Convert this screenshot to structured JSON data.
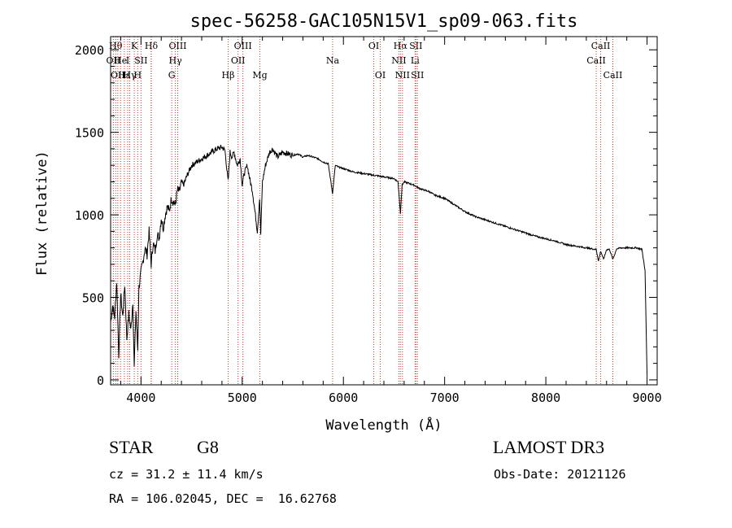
{
  "chart_data": {
    "type": "line",
    "title": "spec-56258-GAC105N15V1_sp09-063.fits",
    "xlabel": "Wavelength (Å)",
    "ylabel": "Flux (relative)",
    "xlim": [
      3700,
      9100
    ],
    "ylim": [
      -30,
      2080
    ],
    "xticks": [
      4000,
      5000,
      6000,
      7000,
      8000,
      9000
    ],
    "xtick_labels": [
      "4000",
      "5000",
      "6000",
      "7000",
      "8000",
      "9000"
    ],
    "yticks": [
      0,
      500,
      1000,
      1500,
      2000
    ],
    "ytick_labels": [
      "0",
      "500",
      "1000",
      "1500",
      "2000"
    ],
    "series": [
      {
        "name": "flux",
        "x": [
          3700,
          3720,
          3740,
          3760,
          3780,
          3800,
          3820,
          3840,
          3860,
          3880,
          3900,
          3920,
          3933,
          3950,
          3968,
          3980,
          4000,
          4020,
          4040,
          4060,
          4080,
          4101,
          4120,
          4140,
          4160,
          4180,
          4200,
          4220,
          4240,
          4260,
          4280,
          4300,
          4320,
          4340,
          4360,
          4380,
          4400,
          4420,
          4450,
          4500,
          4550,
          4600,
          4650,
          4700,
          4750,
          4800,
          4830,
          4861,
          4880,
          4900,
          4920,
          4950,
          4980,
          5000,
          5020,
          5050,
          5080,
          5100,
          5130,
          5150,
          5172,
          5183,
          5200,
          5230,
          5270,
          5300,
          5350,
          5400,
          5450,
          5500,
          5550,
          5600,
          5650,
          5700,
          5750,
          5800,
          5850,
          5893,
          5920,
          5950,
          6000,
          6050,
          6100,
          6150,
          6200,
          6250,
          6300,
          6350,
          6400,
          6450,
          6500,
          6540,
          6563,
          6580,
          6600,
          6650,
          6700,
          6750,
          6800,
          6850,
          6900,
          6950,
          7000,
          7100,
          7200,
          7300,
          7400,
          7500,
          7600,
          7700,
          7800,
          7900,
          8000,
          8100,
          8200,
          8300,
          8400,
          8498,
          8520,
          8542,
          8570,
          8600,
          8630,
          8662,
          8700,
          8750,
          8800,
          8850,
          8900,
          8950,
          8980,
          9000
        ],
        "y": [
          350,
          450,
          380,
          600,
          150,
          520,
          380,
          580,
          250,
          400,
          300,
          480,
          70,
          420,
          180,
          560,
          650,
          720,
          800,
          760,
          900,
          700,
          830,
          780,
          880,
          860,
          980,
          920,
          1000,
          1050,
          1020,
          1100,
          1080,
          1060,
          1150,
          1140,
          1200,
          1180,
          1230,
          1300,
          1320,
          1340,
          1360,
          1380,
          1400,
          1410,
          1390,
          1200,
          1380,
          1350,
          1380,
          1300,
          1340,
          1180,
          1250,
          1300,
          1200,
          1150,
          1000,
          900,
          1100,
          880,
          1200,
          1300,
          1380,
          1400,
          1350,
          1380,
          1370,
          1360,
          1370,
          1350,
          1360,
          1350,
          1340,
          1320,
          1310,
          1130,
          1300,
          1290,
          1280,
          1270,
          1260,
          1255,
          1250,
          1245,
          1240,
          1235,
          1230,
          1225,
          1220,
          1200,
          1010,
          1180,
          1200,
          1190,
          1180,
          1160,
          1150,
          1140,
          1120,
          1110,
          1100,
          1060,
          1020,
          990,
          970,
          950,
          930,
          910,
          890,
          870,
          855,
          840,
          820,
          810,
          800,
          790,
          720,
          780,
          730,
          790,
          790,
          730,
          795,
          800,
          800,
          800,
          800,
          790,
          660,
          20
        ]
      }
    ],
    "lines_group1": [
      {
        "x": 3727,
        "row": 1,
        "label": "OII"
      },
      {
        "x": 3750,
        "row": 0,
        "label": "Hθ"
      },
      {
        "x": 3771,
        "row": 2,
        "label": "OII"
      },
      {
        "x": 3798,
        "row": 1,
        "label": "He"
      },
      {
        "x": 3835,
        "row": 2,
        "label": "Hε"
      },
      {
        "x": 3869,
        "row": 1,
        "label": "I"
      },
      {
        "x": 3889,
        "row": 2,
        "label": "Hγ"
      },
      {
        "x": 3934,
        "row": 0,
        "label": "K"
      },
      {
        "x": 3968,
        "row": 2,
        "label": "H"
      },
      {
        "x": 4000,
        "row": 1,
        "label": "SII"
      },
      {
        "x": 4102,
        "row": 0,
        "label": "Hδ"
      },
      {
        "x": 4100,
        "row": 1,
        "label": ""
      },
      {
        "x": 4304,
        "row": 2,
        "label": "G"
      },
      {
        "x": 4340,
        "row": 1,
        "label": "Hγ"
      },
      {
        "x": 4363,
        "row": 0,
        "label": "OIII"
      },
      {
        "x": 4861,
        "row": 2,
        "label": "Hβ"
      },
      {
        "x": 4959,
        "row": 1,
        "label": "OII"
      },
      {
        "x": 5007,
        "row": 0,
        "label": "OIII"
      },
      {
        "x": 5175,
        "row": 2,
        "label": "Mg"
      },
      {
        "x": 5893,
        "row": 1,
        "label": "Na"
      },
      {
        "x": 6300,
        "row": 0,
        "label": "OI"
      },
      {
        "x": 6364,
        "row": 2,
        "label": "OI"
      },
      {
        "x": 6548,
        "row": 1,
        "label": "NII"
      },
      {
        "x": 6563,
        "row": 0,
        "label": "Hα"
      },
      {
        "x": 6583,
        "row": 2,
        "label": "NII"
      },
      {
        "x": 6708,
        "row": 1,
        "label": "Li"
      },
      {
        "x": 6716,
        "row": 0,
        "label": "SII"
      },
      {
        "x": 6731,
        "row": 2,
        "label": "SII"
      },
      {
        "x": 8498,
        "row": 1,
        "label": "CaII"
      },
      {
        "x": 8542,
        "row": 0,
        "label": "CaII"
      },
      {
        "x": 8662,
        "row": 2,
        "label": "CaII"
      }
    ]
  },
  "info": {
    "class": "STAR",
    "subclass": "G8",
    "survey": "LAMOST DR3",
    "velocity": "cz = 31.2 ± 11.4 km/s",
    "obs_date": "Obs-Date: 20121126",
    "coords": "RA = 106.02045, DEC =  16.62768"
  }
}
